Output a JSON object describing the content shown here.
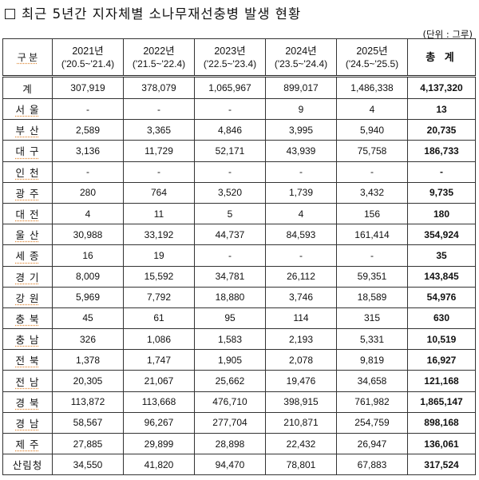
{
  "title": "최근 5년간 지자체별 소나무재선충병 발생 현황",
  "unit": "(단위 : 그루)",
  "table": {
    "header": {
      "category": "구 분",
      "years": [
        {
          "year": "2021년",
          "period": "('20.5~'21.4)"
        },
        {
          "year": "2022년",
          "period": "('21.5~'22.4)"
        },
        {
          "year": "2023년",
          "period": "('22.5~'23.4)"
        },
        {
          "year": "2024년",
          "period": "('23.5~'24.4)"
        },
        {
          "year": "2025년",
          "period": "('24.5~'25.5)"
        }
      ],
      "total": "총 계"
    },
    "rows": [
      {
        "region": "계",
        "v": [
          "307,919",
          "378,079",
          "1,065,967",
          "899,017",
          "1,486,338"
        ],
        "total": "4,137,320"
      },
      {
        "region": "서 울",
        "v": [
          "-",
          "-",
          "-",
          "9",
          "4"
        ],
        "total": "13"
      },
      {
        "region": "부 산",
        "v": [
          "2,589",
          "3,365",
          "4,846",
          "3,995",
          "5,940"
        ],
        "total": "20,735"
      },
      {
        "region": "대 구",
        "v": [
          "3,136",
          "11,729",
          "52,171",
          "43,939",
          "75,758"
        ],
        "total": "186,733"
      },
      {
        "region": "인 천",
        "v": [
          "-",
          "-",
          "-",
          "-",
          "-"
        ],
        "total": "-"
      },
      {
        "region": "광 주",
        "v": [
          "280",
          "764",
          "3,520",
          "1,739",
          "3,432"
        ],
        "total": "9,735"
      },
      {
        "region": "대 전",
        "v": [
          "4",
          "11",
          "5",
          "4",
          "156"
        ],
        "total": "180"
      },
      {
        "region": "울 산",
        "v": [
          "30,988",
          "33,192",
          "44,737",
          "84,593",
          "161,414"
        ],
        "total": "354,924"
      },
      {
        "region": "세 종",
        "v": [
          "16",
          "19",
          "-",
          "-",
          "-"
        ],
        "total": "35"
      },
      {
        "region": "경 기",
        "v": [
          "8,009",
          "15,592",
          "34,781",
          "26,112",
          "59,351"
        ],
        "total": "143,845"
      },
      {
        "region": "강 원",
        "v": [
          "5,969",
          "7,792",
          "18,880",
          "3,746",
          "18,589"
        ],
        "total": "54,976"
      },
      {
        "region": "충 북",
        "v": [
          "45",
          "61",
          "95",
          "114",
          "315"
        ],
        "total": "630"
      },
      {
        "region": "충 남",
        "v": [
          "326",
          "1,086",
          "1,583",
          "2,193",
          "5,331"
        ],
        "total": "10,519"
      },
      {
        "region": "전 북",
        "v": [
          "1,378",
          "1,747",
          "1,905",
          "2,078",
          "9,819"
        ],
        "total": "16,927"
      },
      {
        "region": "전 남",
        "v": [
          "20,305",
          "21,067",
          "25,662",
          "19,476",
          "34,658"
        ],
        "total": "121,168"
      },
      {
        "region": "경 북",
        "v": [
          "113,872",
          "113,668",
          "476,710",
          "398,915",
          "761,982"
        ],
        "total": "1,865,147"
      },
      {
        "region": "경 남",
        "v": [
          "58,567",
          "96,267",
          "277,704",
          "210,871",
          "254,759"
        ],
        "total": "898,168"
      },
      {
        "region": "제 주",
        "v": [
          "27,885",
          "29,899",
          "28,898",
          "22,432",
          "26,947"
        ],
        "total": "136,061"
      },
      {
        "region": "산림청",
        "v": [
          "34,550",
          "41,820",
          "94,470",
          "78,801",
          "67,883"
        ],
        "total": "317,524"
      }
    ]
  }
}
